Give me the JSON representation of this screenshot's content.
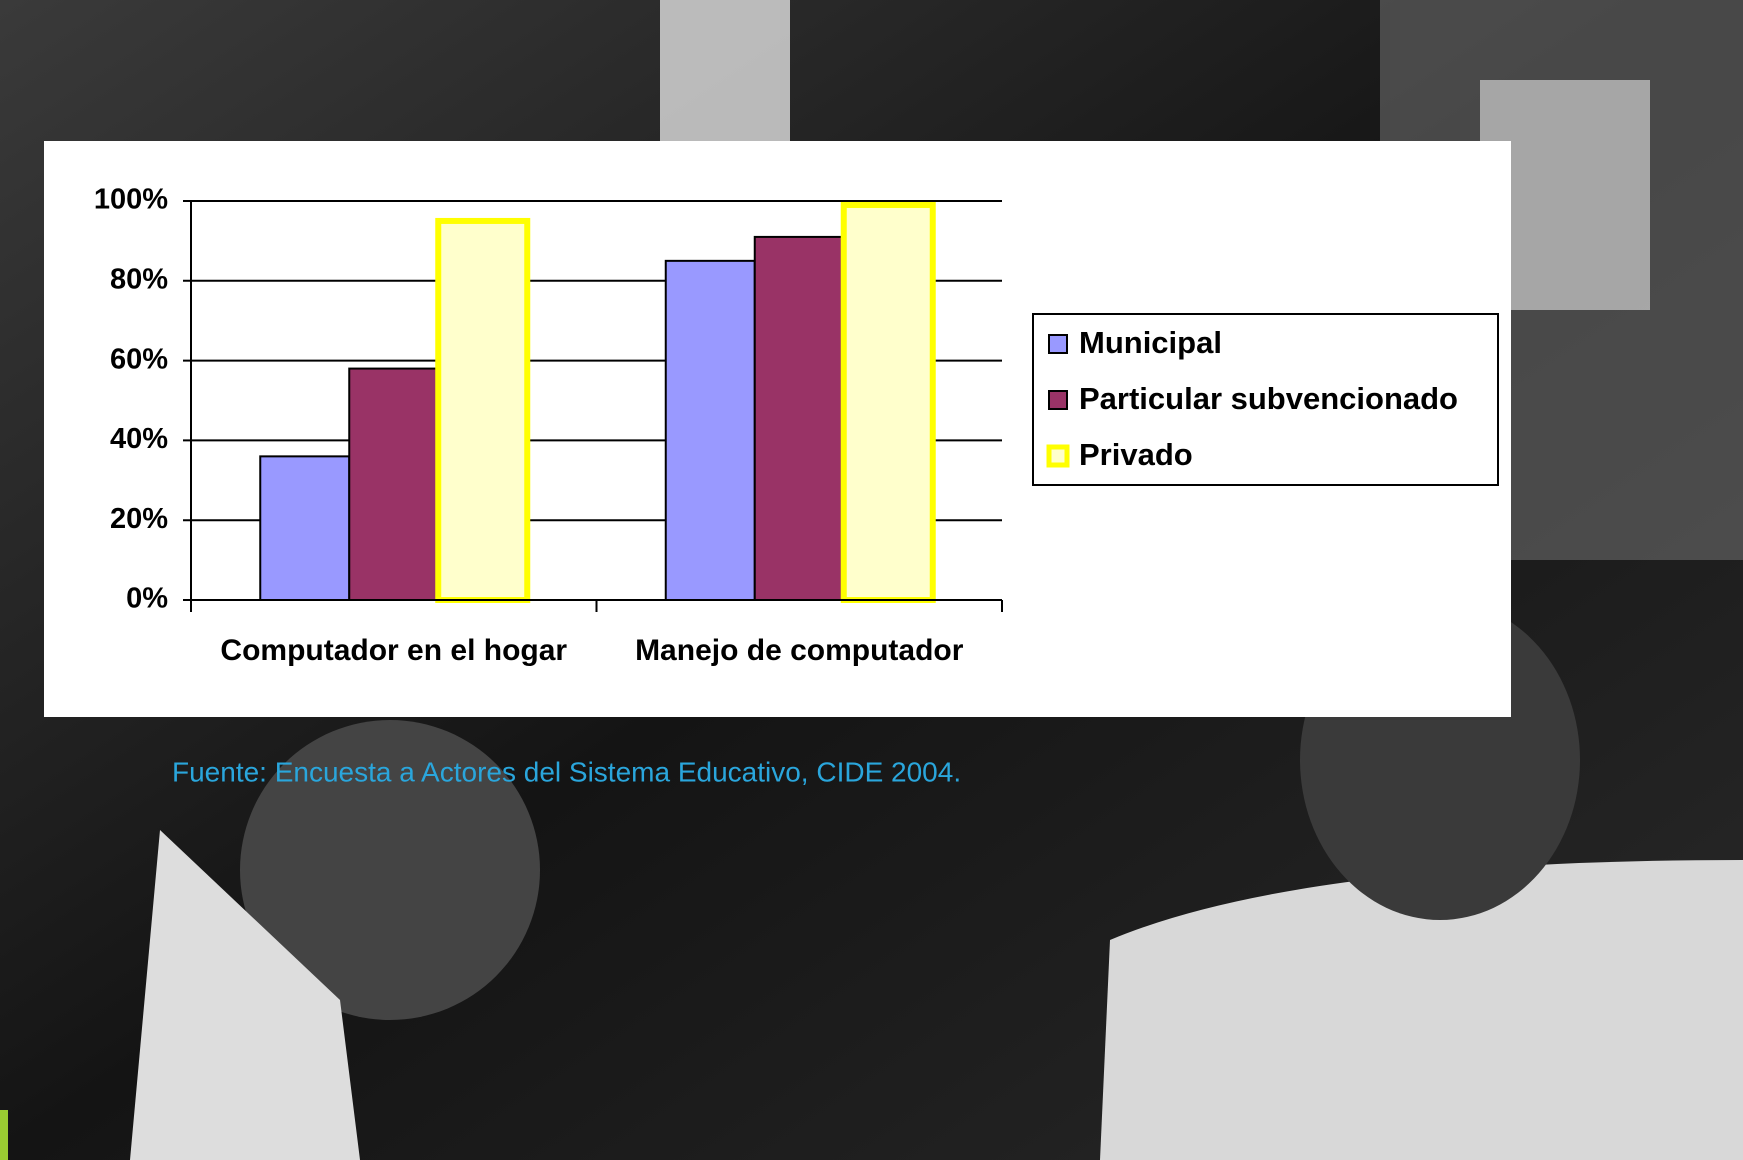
{
  "chart_data": {
    "type": "bar",
    "categories": [
      "Computador en el hogar",
      "Manejo de computador"
    ],
    "series": [
      {
        "name": "Municipal",
        "color": "#9999ff",
        "stroke": "#000000",
        "values": [
          36,
          85
        ]
      },
      {
        "name": "Particular subvencionado",
        "color": "#993366",
        "stroke": "#000000",
        "values": [
          58,
          91
        ]
      },
      {
        "name": "Privado",
        "color": "#ffffcc",
        "stroke": "#ffff00",
        "values": [
          95,
          99
        ]
      }
    ],
    "ylim": [
      0,
      100
    ],
    "yticks": [
      {
        "value": 0,
        "label": "0%"
      },
      {
        "value": 20,
        "label": "20%"
      },
      {
        "value": 40,
        "label": "40%"
      },
      {
        "value": 60,
        "label": "60%"
      },
      {
        "value": 80,
        "label": "80%"
      },
      {
        "value": 100,
        "label": "100%"
      }
    ],
    "grid": true,
    "legend": "right",
    "source": "Fuente: Encuesta a Actores del Sistema Educativo, CIDE 2004."
  }
}
